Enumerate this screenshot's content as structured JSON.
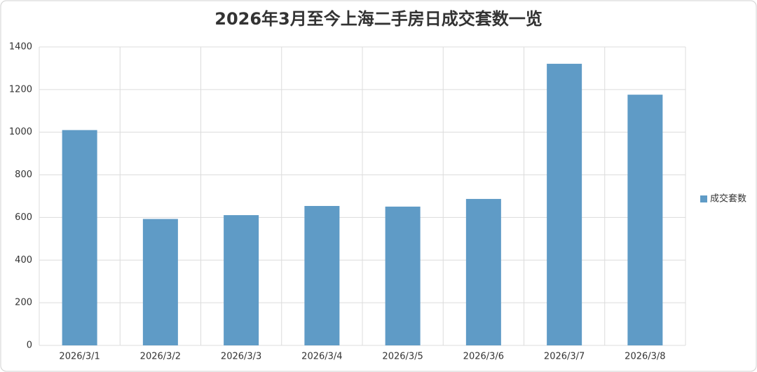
{
  "chart_data": {
    "type": "bar",
    "title": "2026年3月至今上海二手房日成交套数一览",
    "categories": [
      "2026/3/1",
      "2026/3/2",
      "2026/3/3",
      "2026/3/4",
      "2026/3/5",
      "2026/3/6",
      "2026/3/7",
      "2026/3/8"
    ],
    "series": [
      {
        "name": "成交套数",
        "color": "#5f9bc6",
        "values": [
          1010,
          593,
          611,
          654,
          651,
          687,
          1321,
          1176
        ]
      }
    ],
    "ylim": [
      0,
      1400
    ],
    "yticks": [
      0,
      200,
      400,
      600,
      800,
      1000,
      1200,
      1400
    ],
    "grid": true,
    "legend": "right"
  }
}
